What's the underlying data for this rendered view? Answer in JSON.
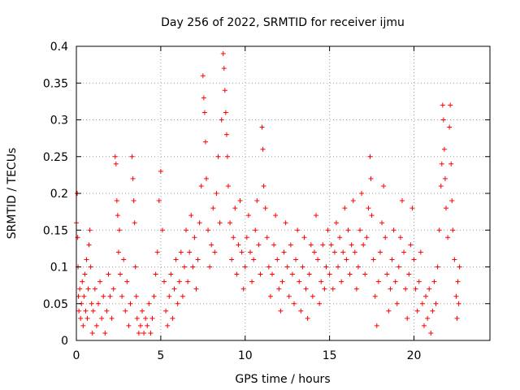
{
  "chart_data": {
    "type": "scatter",
    "title": "Day 256 of 2022, SRMTID for receiver ijmu",
    "xlabel": "GPS time / hours",
    "ylabel": "SRMTID / TECUs",
    "xlim": [
      0,
      24.5
    ],
    "ylim": [
      0,
      0.4
    ],
    "x_ticks": [
      0,
      5,
      10,
      15,
      20
    ],
    "x_tick_labels": [
      "0",
      "5",
      "10",
      "15",
      "20"
    ],
    "y_ticks": [
      0,
      0.05,
      0.1,
      0.15,
      0.2,
      0.25,
      0.3,
      0.35,
      0.4
    ],
    "y_tick_labels": [
      "0",
      "0.05",
      "0.1",
      "0.15",
      "0.2",
      "0.25",
      "0.3",
      "0.35",
      "0.4"
    ],
    "grid": true,
    "marker": "plus",
    "color": "#ff0000",
    "series": [
      {
        "name": "SRMTID",
        "points": [
          [
            0.0,
            0.16
          ],
          [
            0.05,
            0.2
          ],
          [
            0.08,
            0.14
          ],
          [
            0.1,
            0.1
          ],
          [
            0.12,
            0.06
          ],
          [
            0.15,
            0.04
          ],
          [
            0.2,
            0.07
          ],
          [
            0.25,
            0.03
          ],
          [
            0.3,
            0.05
          ],
          [
            0.35,
            0.08
          ],
          [
            0.4,
            0.02
          ],
          [
            0.45,
            0.06
          ],
          [
            0.5,
            0.09
          ],
          [
            0.55,
            0.04
          ],
          [
            0.6,
            0.11
          ],
          [
            0.65,
            0.03
          ],
          [
            0.7,
            0.07
          ],
          [
            0.75,
            0.13
          ],
          [
            0.8,
            0.15
          ],
          [
            0.85,
            0.1
          ],
          [
            0.9,
            0.05
          ],
          [
            0.95,
            0.01
          ],
          [
            1.0,
            0.04
          ],
          [
            1.1,
            0.07
          ],
          [
            1.2,
            0.02
          ],
          [
            1.3,
            0.05
          ],
          [
            1.4,
            0.08
          ],
          [
            1.5,
            0.03
          ],
          [
            1.6,
            0.06
          ],
          [
            1.7,
            0.01
          ],
          [
            1.8,
            0.04
          ],
          [
            1.9,
            0.09
          ],
          [
            2.0,
            0.06
          ],
          [
            2.1,
            0.03
          ],
          [
            2.2,
            0.07
          ],
          [
            2.3,
            0.25
          ],
          [
            2.35,
            0.24
          ],
          [
            2.4,
            0.19
          ],
          [
            2.45,
            0.17
          ],
          [
            2.5,
            0.12
          ],
          [
            2.55,
            0.15
          ],
          [
            2.6,
            0.09
          ],
          [
            2.7,
            0.06
          ],
          [
            2.8,
            0.11
          ],
          [
            2.9,
            0.04
          ],
          [
            3.0,
            0.08
          ],
          [
            3.1,
            0.02
          ],
          [
            3.2,
            0.05
          ],
          [
            3.3,
            0.25
          ],
          [
            3.35,
            0.22
          ],
          [
            3.4,
            0.19
          ],
          [
            3.45,
            0.16
          ],
          [
            3.5,
            0.1
          ],
          [
            3.55,
            0.06
          ],
          [
            3.6,
            0.03
          ],
          [
            3.7,
            0.01
          ],
          [
            3.8,
            0.02
          ],
          [
            3.9,
            0.04
          ],
          [
            4.0,
            0.01
          ],
          [
            4.1,
            0.03
          ],
          [
            4.2,
            0.02
          ],
          [
            4.3,
            0.05
          ],
          [
            4.4,
            0.01
          ],
          [
            4.5,
            0.03
          ],
          [
            4.6,
            0.06
          ],
          [
            4.7,
            0.09
          ],
          [
            4.8,
            0.12
          ],
          [
            4.9,
            0.19
          ],
          [
            5.0,
            0.23
          ],
          [
            5.1,
            0.15
          ],
          [
            5.2,
            0.08
          ],
          [
            5.3,
            0.04
          ],
          [
            5.4,
            0.02
          ],
          [
            5.5,
            0.06
          ],
          [
            5.6,
            0.09
          ],
          [
            5.7,
            0.03
          ],
          [
            5.8,
            0.07
          ],
          [
            5.9,
            0.11
          ],
          [
            6.0,
            0.05
          ],
          [
            6.1,
            0.08
          ],
          [
            6.2,
            0.12
          ],
          [
            6.3,
            0.06
          ],
          [
            6.4,
            0.1
          ],
          [
            6.5,
            0.15
          ],
          [
            6.6,
            0.08
          ],
          [
            6.7,
            0.12
          ],
          [
            6.8,
            0.17
          ],
          [
            6.9,
            0.1
          ],
          [
            7.0,
            0.14
          ],
          [
            7.1,
            0.07
          ],
          [
            7.2,
            0.11
          ],
          [
            7.3,
            0.16
          ],
          [
            7.4,
            0.21
          ],
          [
            7.5,
            0.36
          ],
          [
            7.55,
            0.33
          ],
          [
            7.6,
            0.31
          ],
          [
            7.65,
            0.27
          ],
          [
            7.7,
            0.22
          ],
          [
            7.8,
            0.15
          ],
          [
            7.9,
            0.1
          ],
          [
            8.0,
            0.13
          ],
          [
            8.1,
            0.18
          ],
          [
            8.2,
            0.12
          ],
          [
            8.3,
            0.2
          ],
          [
            8.4,
            0.25
          ],
          [
            8.5,
            0.16
          ],
          [
            8.6,
            0.3
          ],
          [
            8.7,
            0.39
          ],
          [
            8.75,
            0.37
          ],
          [
            8.8,
            0.34
          ],
          [
            8.85,
            0.31
          ],
          [
            8.9,
            0.28
          ],
          [
            8.95,
            0.25
          ],
          [
            9.0,
            0.21
          ],
          [
            9.1,
            0.16
          ],
          [
            9.2,
            0.11
          ],
          [
            9.3,
            0.14
          ],
          [
            9.4,
            0.18
          ],
          [
            9.5,
            0.09
          ],
          [
            9.6,
            0.13
          ],
          [
            9.7,
            0.19
          ],
          [
            9.8,
            0.12
          ],
          [
            9.9,
            0.07
          ],
          [
            10.0,
            0.1
          ],
          [
            10.1,
            0.14
          ],
          [
            10.2,
            0.17
          ],
          [
            10.3,
            0.12
          ],
          [
            10.4,
            0.08
          ],
          [
            10.5,
            0.11
          ],
          [
            10.6,
            0.15
          ],
          [
            10.7,
            0.19
          ],
          [
            10.8,
            0.13
          ],
          [
            10.9,
            0.09
          ],
          [
            11.0,
            0.29
          ],
          [
            11.05,
            0.26
          ],
          [
            11.1,
            0.21
          ],
          [
            11.2,
            0.18
          ],
          [
            11.3,
            0.14
          ],
          [
            11.4,
            0.1
          ],
          [
            11.5,
            0.06
          ],
          [
            11.6,
            0.09
          ],
          [
            11.7,
            0.13
          ],
          [
            11.8,
            0.17
          ],
          [
            11.9,
            0.11
          ],
          [
            12.0,
            0.07
          ],
          [
            12.1,
            0.04
          ],
          [
            12.2,
            0.08
          ],
          [
            12.3,
            0.12
          ],
          [
            12.4,
            0.16
          ],
          [
            12.5,
            0.1
          ],
          [
            12.6,
            0.06
          ],
          [
            12.7,
            0.13
          ],
          [
            12.8,
            0.09
          ],
          [
            12.9,
            0.05
          ],
          [
            13.0,
            0.11
          ],
          [
            13.1,
            0.15
          ],
          [
            13.2,
            0.08
          ],
          [
            13.3,
            0.04
          ],
          [
            13.4,
            0.1
          ],
          [
            13.5,
            0.14
          ],
          [
            13.6,
            0.07
          ],
          [
            13.7,
            0.03
          ],
          [
            13.8,
            0.09
          ],
          [
            13.9,
            0.13
          ],
          [
            14.0,
            0.06
          ],
          [
            14.1,
            0.12
          ],
          [
            14.2,
            0.17
          ],
          [
            14.3,
            0.11
          ],
          [
            14.4,
            0.05
          ],
          [
            14.5,
            0.08
          ],
          [
            14.6,
            0.13
          ],
          [
            14.7,
            0.07
          ],
          [
            14.8,
            0.1
          ],
          [
            14.9,
            0.15
          ],
          [
            15.0,
            0.09
          ],
          [
            15.1,
            0.13
          ],
          [
            15.2,
            0.07
          ],
          [
            15.3,
            0.12
          ],
          [
            15.4,
            0.16
          ],
          [
            15.5,
            0.1
          ],
          [
            15.6,
            0.14
          ],
          [
            15.7,
            0.08
          ],
          [
            15.8,
            0.12
          ],
          [
            15.9,
            0.18
          ],
          [
            16.0,
            0.11
          ],
          [
            16.1,
            0.15
          ],
          [
            16.2,
            0.09
          ],
          [
            16.3,
            0.13
          ],
          [
            16.4,
            0.19
          ],
          [
            16.5,
            0.12
          ],
          [
            16.6,
            0.07
          ],
          [
            16.7,
            0.1
          ],
          [
            16.8,
            0.15
          ],
          [
            16.9,
            0.2
          ],
          [
            17.0,
            0.13
          ],
          [
            17.1,
            0.09
          ],
          [
            17.2,
            0.14
          ],
          [
            17.3,
            0.18
          ],
          [
            17.4,
            0.25
          ],
          [
            17.45,
            0.22
          ],
          [
            17.5,
            0.17
          ],
          [
            17.6,
            0.11
          ],
          [
            17.7,
            0.06
          ],
          [
            17.8,
            0.02
          ],
          [
            17.9,
            0.08
          ],
          [
            18.0,
            0.12
          ],
          [
            18.1,
            0.16
          ],
          [
            18.2,
            0.21
          ],
          [
            18.3,
            0.14
          ],
          [
            18.4,
            0.09
          ],
          [
            18.5,
            0.04
          ],
          [
            18.6,
            0.07
          ],
          [
            18.7,
            0.11
          ],
          [
            18.8,
            0.15
          ],
          [
            18.9,
            0.08
          ],
          [
            19.0,
            0.05
          ],
          [
            19.1,
            0.1
          ],
          [
            19.2,
            0.14
          ],
          [
            19.3,
            0.19
          ],
          [
            19.4,
            0.12
          ],
          [
            19.5,
            0.07
          ],
          [
            19.6,
            0.03
          ],
          [
            19.7,
            0.09
          ],
          [
            19.8,
            0.13
          ],
          [
            19.9,
            0.18
          ],
          [
            20.0,
            0.11
          ],
          [
            20.1,
            0.07
          ],
          [
            20.2,
            0.04
          ],
          [
            20.3,
            0.08
          ],
          [
            20.4,
            0.12
          ],
          [
            20.5,
            0.05
          ],
          [
            20.6,
            0.02
          ],
          [
            20.7,
            0.06
          ],
          [
            20.8,
            0.03
          ],
          [
            20.9,
            0.07
          ],
          [
            21.0,
            0.01
          ],
          [
            21.1,
            0.04
          ],
          [
            21.2,
            0.08
          ],
          [
            21.3,
            0.05
          ],
          [
            21.4,
            0.1
          ],
          [
            21.5,
            0.15
          ],
          [
            21.6,
            0.21
          ],
          [
            21.65,
            0.24
          ],
          [
            21.7,
            0.32
          ],
          [
            21.75,
            0.3
          ],
          [
            21.8,
            0.26
          ],
          [
            21.85,
            0.22
          ],
          [
            21.9,
            0.18
          ],
          [
            22.0,
            0.14
          ],
          [
            22.1,
            0.29
          ],
          [
            22.15,
            0.32
          ],
          [
            22.2,
            0.24
          ],
          [
            22.25,
            0.19
          ],
          [
            22.3,
            0.15
          ],
          [
            22.4,
            0.11
          ],
          [
            22.5,
            0.06
          ],
          [
            22.55,
            0.03
          ],
          [
            22.6,
            0.08
          ],
          [
            22.65,
            0.05
          ],
          [
            22.7,
            0.1
          ]
        ]
      }
    ]
  }
}
